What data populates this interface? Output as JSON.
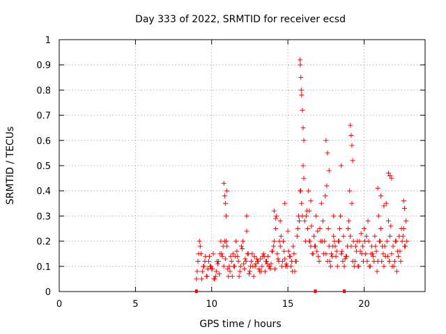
{
  "chart_data": {
    "type": "scatter",
    "title": "Day 333 of 2022, SRMTID for receiver ecsd",
    "xlabel": "GPS time / hours",
    "ylabel": "SRMTID / TECUs",
    "xlim": [
      0,
      24
    ],
    "ylim": [
      0,
      1
    ],
    "xticks": [
      0,
      5,
      10,
      15,
      20
    ],
    "yticks": [
      0,
      0.1,
      0.2,
      0.3,
      0.4,
      0.5,
      0.6,
      0.7,
      0.8,
      0.9,
      1
    ],
    "grid": true,
    "marker": "plus",
    "color": "#ff0000",
    "x_markers": [
      9.0,
      16.8,
      18.7
    ],
    "series": [
      {
        "name": "SRMTID",
        "x": [
          9.0,
          9.1,
          9.2,
          9.3,
          9.4,
          9.5,
          9.6,
          9.7,
          9.8,
          9.9,
          10.0,
          10.1,
          10.2,
          10.3,
          10.4,
          10.5,
          10.6,
          10.7,
          10.8,
          10.9,
          11.0,
          11.1,
          11.2,
          11.3,
          11.4,
          11.5,
          11.6,
          11.7,
          11.8,
          11.9,
          12.0,
          12.1,
          12.2,
          12.3,
          12.4,
          12.5,
          12.6,
          12.7,
          12.8,
          12.9,
          13.0,
          13.1,
          13.2,
          13.3,
          13.4,
          13.5,
          13.6,
          13.7,
          13.8,
          13.9,
          14.0,
          14.1,
          14.2,
          14.3,
          14.4,
          14.5,
          14.6,
          14.7,
          14.8,
          14.9,
          15.0,
          15.1,
          15.2,
          15.3,
          15.4,
          15.5,
          15.6,
          15.7,
          15.8,
          15.9,
          16.0,
          16.1,
          16.2,
          16.3,
          16.4,
          16.5,
          16.6,
          16.7,
          16.8,
          16.9,
          17.0,
          17.1,
          17.2,
          17.3,
          17.4,
          17.5,
          17.6,
          17.7,
          17.8,
          17.9,
          18.0,
          18.1,
          18.2,
          18.3,
          18.4,
          18.5,
          18.6,
          18.7,
          18.8,
          18.9,
          19.0,
          19.1,
          19.2,
          19.3,
          19.4,
          19.5,
          19.6,
          19.7,
          19.8,
          19.9,
          20.0,
          20.1,
          20.2,
          20.3,
          20.4,
          20.5,
          20.6,
          20.7,
          20.8,
          20.9,
          21.0,
          21.1,
          21.2,
          21.3,
          21.4,
          21.5,
          21.6,
          21.7,
          21.8,
          21.9,
          22.0,
          22.1,
          22.2,
          22.3,
          22.4,
          22.5,
          22.6,
          22.7,
          22.8,
          9.05,
          9.25,
          9.45,
          9.65,
          9.85,
          10.05,
          10.25,
          10.45,
          10.65,
          10.85,
          11.05,
          11.25,
          11.45,
          11.65,
          11.85,
          12.05,
          12.25,
          12.45,
          12.65,
          12.85,
          13.05,
          13.25,
          13.45,
          13.65,
          13.85,
          14.05,
          14.25,
          14.45,
          14.65,
          14.85,
          15.05,
          15.25,
          15.45,
          15.65,
          15.85,
          16.05,
          16.25,
          16.45,
          16.65,
          16.85,
          17.05,
          17.25,
          17.45,
          17.65,
          17.85,
          18.05,
          18.25,
          18.45,
          18.65,
          18.85,
          19.05,
          19.25,
          19.45,
          19.65,
          19.85,
          20.05,
          20.25,
          20.45,
          20.65,
          20.85,
          21.05,
          21.25,
          21.45,
          21.65,
          21.85,
          22.05,
          22.25,
          22.45,
          22.65,
          9.15,
          9.35,
          9.55,
          9.75,
          9.95,
          10.15,
          10.35,
          10.55,
          10.75,
          10.95,
          11.15,
          11.35,
          11.55,
          11.75,
          11.95,
          12.15,
          12.35,
          12.55,
          12.75,
          12.95,
          13.15,
          13.35,
          13.55,
          13.75,
          13.95,
          14.15,
          14.35,
          14.55,
          14.75,
          14.95,
          15.15,
          15.35,
          15.55,
          15.75,
          15.95,
          16.15,
          16.35,
          16.55,
          16.75,
          16.95,
          17.15,
          17.35,
          17.55,
          17.75,
          17.95,
          18.15,
          18.35,
          18.55,
          18.75,
          18.95,
          19.15,
          19.35,
          19.55,
          19.75,
          19.95,
          20.15,
          20.35,
          20.55,
          20.75,
          20.95,
          21.15,
          21.35,
          21.55,
          21.75,
          21.95,
          22.15,
          22.35,
          22.55,
          22.75,
          10.8,
          10.85,
          10.9,
          10.95,
          11.0,
          15.8,
          15.85,
          15.9,
          15.95,
          16.0,
          15.82,
          15.88,
          16.05,
          17.5,
          17.6,
          17.7,
          18.5,
          19.1,
          19.15,
          19.2,
          19.25,
          21.6,
          21.7,
          21.8,
          22.6,
          22.65,
          12.3,
          14.5,
          14.8,
          16.4,
          16.5,
          18.0,
          20.9,
          21.1,
          21.3,
          14.1,
          14.2
        ],
        "y": [
          0.05,
          0.12,
          0.2,
          0.15,
          0.08,
          0.1,
          0.14,
          0.06,
          0.12,
          0.1,
          0.09,
          0.15,
          0.05,
          0.08,
          0.11,
          0.07,
          0.2,
          0.14,
          0.1,
          0.13,
          0.18,
          0.06,
          0.08,
          0.12,
          0.15,
          0.1,
          0.2,
          0.14,
          0.06,
          0.1,
          0.17,
          0.11,
          0.13,
          0.24,
          0.15,
          0.08,
          0.12,
          0.1,
          0.14,
          0.11,
          0.12,
          0.09,
          0.13,
          0.1,
          0.15,
          0.08,
          0.12,
          0.14,
          0.1,
          0.11,
          0.16,
          0.2,
          0.25,
          0.15,
          0.12,
          0.18,
          0.1,
          0.2,
          0.13,
          0.11,
          0.24,
          0.14,
          0.1,
          0.08,
          0.15,
          0.12,
          0.22,
          0.3,
          0.4,
          0.35,
          0.5,
          0.28,
          0.3,
          0.25,
          0.2,
          0.18,
          0.15,
          0.22,
          0.18,
          0.16,
          0.14,
          0.25,
          0.35,
          0.28,
          0.2,
          0.15,
          0.12,
          0.18,
          0.1,
          0.14,
          0.22,
          0.18,
          0.16,
          0.2,
          0.25,
          0.15,
          0.12,
          0.1,
          0.14,
          0.18,
          0.28,
          0.22,
          0.35,
          0.2,
          0.12,
          0.16,
          0.1,
          0.2,
          0.23,
          0.18,
          0.25,
          0.15,
          0.12,
          0.2,
          0.1,
          0.18,
          0.14,
          0.22,
          0.16,
          0.12,
          0.2,
          0.25,
          0.18,
          0.1,
          0.14,
          0.2,
          0.28,
          0.22,
          0.15,
          0.18,
          0.12,
          0.2,
          0.16,
          0.22,
          0.12,
          0.2,
          0.25,
          0.18,
          0.2,
          0.08,
          0.18,
          0.1,
          0.06,
          0.14,
          0.09,
          0.06,
          0.12,
          0.15,
          0.2,
          0.09,
          0.14,
          0.1,
          0.16,
          0.08,
          0.2,
          0.12,
          0.07,
          0.15,
          0.1,
          0.12,
          0.08,
          0.14,
          0.11,
          0.09,
          0.18,
          0.3,
          0.2,
          0.12,
          0.1,
          0.16,
          0.12,
          0.08,
          0.25,
          0.4,
          0.45,
          0.32,
          0.2,
          0.15,
          0.3,
          0.12,
          0.2,
          0.38,
          0.25,
          0.15,
          0.2,
          0.1,
          0.3,
          0.22,
          0.14,
          0.4,
          0.12,
          0.18,
          0.1,
          0.15,
          0.2,
          0.28,
          0.15,
          0.12,
          0.08,
          0.2,
          0.15,
          0.35,
          0.12,
          0.1,
          0.2,
          0.14,
          0.25,
          0.18,
          0.15,
          0.05,
          0.12,
          0.09,
          0.1,
          0.05,
          0.12,
          0.15,
          0.18,
          0.2,
          0.1,
          0.06,
          0.14,
          0.12,
          0.18,
          0.09,
          0.15,
          0.1,
          0.06,
          0.13,
          0.08,
          0.14,
          0.12,
          0.1,
          0.16,
          0.09,
          0.13,
          0.22,
          0.16,
          0.1,
          0.14,
          0.18,
          0.12,
          0.28,
          0.3,
          0.2,
          0.4,
          0.26,
          0.18,
          0.24,
          0.2,
          0.15,
          0.42,
          0.12,
          0.18,
          0.14,
          0.2,
          0.16,
          0.13,
          0.25,
          0.18,
          0.1,
          0.2,
          0.16,
          0.12,
          0.22,
          0.1,
          0.15,
          0.18,
          0.3,
          0.12,
          0.18,
          0.14,
          0.26,
          0.1,
          0.08,
          0.16,
          0.22,
          0.28,
          0.43,
          0.38,
          0.35,
          0.3,
          0.4,
          0.92,
          0.85,
          0.78,
          0.72,
          0.65,
          0.9,
          0.8,
          0.6,
          0.6,
          0.55,
          0.48,
          0.5,
          0.66,
          0.62,
          0.58,
          0.52,
          0.47,
          0.46,
          0.45,
          0.36,
          0.33,
          0.3,
          0.28,
          0.35,
          0.32,
          0.36,
          0.3,
          0.41,
          0.38,
          0.34,
          0.32,
          0.29
        ]
      }
    ]
  }
}
